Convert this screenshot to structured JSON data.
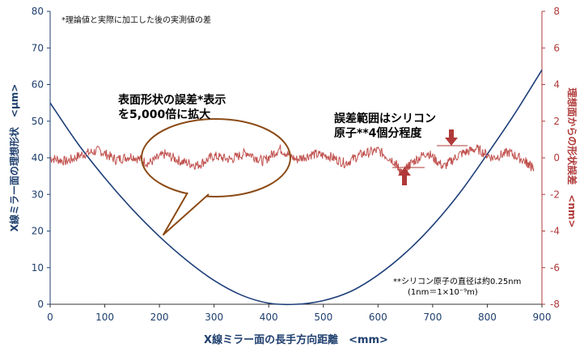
{
  "chart_data": {
    "type": "line",
    "xlabel": "X線ミラー面の長手方向距離　<mm>",
    "ylabel_left": "X線ミラー面の理想形状　<μm>",
    "ylabel_right": "理想面からの形状誤差　<nm>",
    "xlim": [
      0,
      900
    ],
    "ylim_left": [
      0,
      80
    ],
    "ylim_right": [
      -8,
      8
    ],
    "x_ticks": [
      "0",
      "100",
      "200",
      "300",
      "400",
      "500",
      "600",
      "700",
      "800",
      "900"
    ],
    "y_left_ticks": [
      "0",
      "10",
      "20",
      "30",
      "40",
      "50",
      "60",
      "70",
      "80"
    ],
    "y_right_ticks": [
      "-8",
      "-6",
      "-4",
      "-2",
      "0",
      "2",
      "4",
      "6",
      "8"
    ],
    "grid": false,
    "series": [
      {
        "axis": "left",
        "color": "#1f3f7a",
        "x": [
          0,
          50,
          100,
          150,
          200,
          250,
          300,
          350,
          400,
          450,
          500,
          550,
          600,
          650,
          700,
          750,
          800,
          850,
          900
        ],
        "values": [
          55,
          44,
          34.5,
          26,
          18.5,
          12,
          6.5,
          2.5,
          0.3,
          0,
          1,
          3.5,
          8,
          14,
          21.5,
          30.5,
          41,
          52,
          64
        ]
      },
      {
        "axis": "right",
        "color": "#c0504d",
        "x": [
          0,
          30,
          60,
          90,
          120,
          150,
          180,
          210,
          240,
          270,
          300,
          330,
          360,
          390,
          420,
          450,
          480,
          510,
          540,
          570,
          600,
          630,
          645,
          660,
          690,
          720,
          750,
          780,
          810,
          840,
          870,
          885
        ],
        "values": [
          0,
          -0.2,
          0.2,
          0.4,
          -0.1,
          0.1,
          -0.3,
          0.2,
          -0.2,
          -0.4,
          0.1,
          -0.1,
          0.3,
          -0.2,
          0.5,
          -0.1,
          0.2,
          0.1,
          -0.3,
          0.2,
          0.4,
          -0.2,
          -0.9,
          -0.3,
          0.3,
          -0.5,
          0.2,
          0.5,
          0,
          0.3,
          -0.2,
          -0.6
        ]
      }
    ],
    "annotations": {
      "note_top": "*理論値と実際に加工した後の実測値の差",
      "callout_line1": "表面形状の誤差*表示",
      "callout_line2": "を5,000倍に拡大",
      "range_line1": "誤差範囲はシリコン",
      "range_line2": "原子**4個分程度",
      "footnote_line1": "**シリコン原子の直径は約0.25nm",
      "footnote_line2": "(1nm＝1×10⁻⁹m)"
    },
    "colors": {
      "left_axis": "#1f3f6e",
      "right_axis": "#b03a3a",
      "bubble_stroke": "#8b4a14",
      "arrow": "#b03a3a"
    }
  }
}
